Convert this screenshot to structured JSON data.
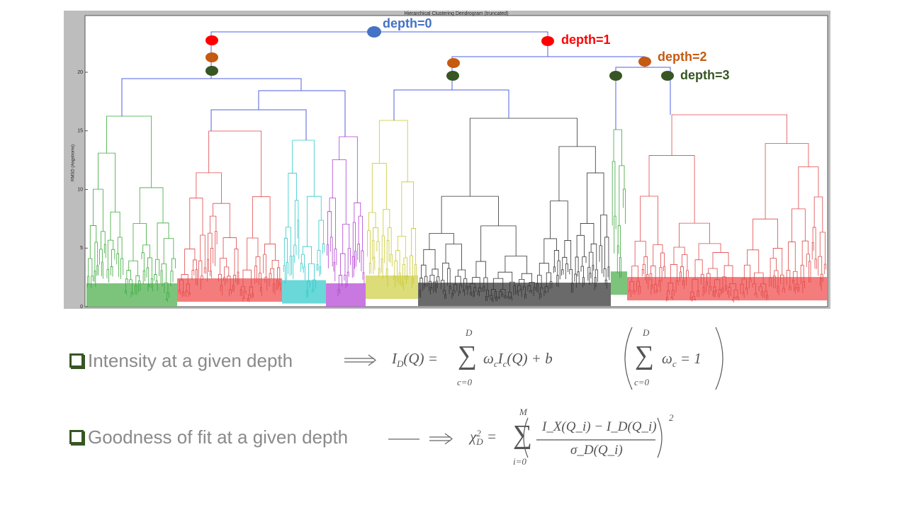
{
  "dendrogram": {
    "title": "Hierarchical Clustering Dendrogram (truncated)",
    "y_label": "RMSD (Angstroms)",
    "y_ticks": [
      0,
      5,
      10,
      15,
      20
    ]
  },
  "depth_labels": [
    "depth=0",
    "depth=1",
    "depth=2",
    "depth=3"
  ],
  "bullets": [
    "Intensity at a given depth",
    "Goodness of fit at a given depth"
  ],
  "formula1": {
    "lhs": [
      "I",
      "D",
      "(Q) ="
    ],
    "sum": "∑",
    "upper": "D",
    "lower": "c=0",
    "term": [
      "ω",
      "c",
      "I",
      "c",
      "(Q) + b"
    ]
  },
  "constraint": {
    "sum": "∑",
    "upper": "D",
    "lower": "c=0",
    "term": [
      "ω",
      "c",
      " = 1"
    ]
  },
  "formula2": {
    "lhs": [
      "χ",
      "2",
      "D",
      "="
    ],
    "sum": "∑",
    "upper": "M",
    "lower": "i=0",
    "numerator": "I_X(Q_i) − I_D(Q_i)",
    "denominator": "σ_D(Q_i)",
    "power": "2"
  }
}
